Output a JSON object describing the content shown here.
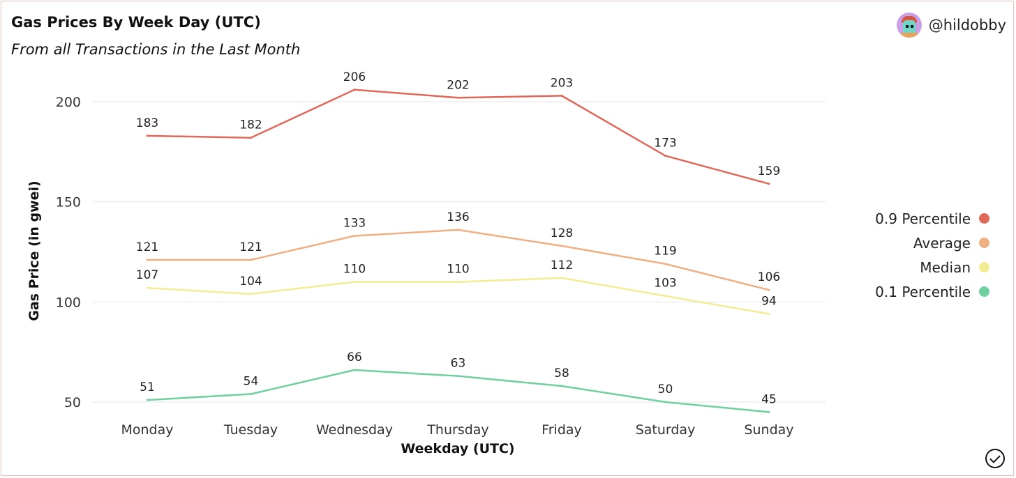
{
  "header": {
    "title": "Gas Prices By Week Day (UTC)",
    "subtitle": "From all Transactions in the Last Month",
    "author": "@hildobby"
  },
  "chart_data": {
    "type": "line",
    "xlabel": "Weekday (UTC)",
    "ylabel": "Gas Price (in gwei)",
    "categories": [
      "Monday",
      "Tuesday",
      "Wednesday",
      "Thursday",
      "Friday",
      "Saturday",
      "Sunday"
    ],
    "yticks": [
      50,
      100,
      150,
      200
    ],
    "ylim": [
      45,
      206
    ],
    "grid": true,
    "legend_position": "right",
    "series": [
      {
        "name": "0.9 Percentile",
        "color": "#e0685a",
        "values": [
          183,
          182,
          206,
          202,
          203,
          173,
          159
        ]
      },
      {
        "name": "Average",
        "color": "#eeaf83",
        "values": [
          121,
          121,
          133,
          136,
          128,
          119,
          106
        ]
      },
      {
        "name": "Median",
        "color": "#f4ec92",
        "values": [
          107,
          104,
          110,
          110,
          112,
          103,
          94
        ]
      },
      {
        "name": "0.1 Percentile",
        "color": "#6fcf9f",
        "values": [
          51,
          54,
          66,
          63,
          58,
          50,
          45
        ]
      }
    ]
  }
}
